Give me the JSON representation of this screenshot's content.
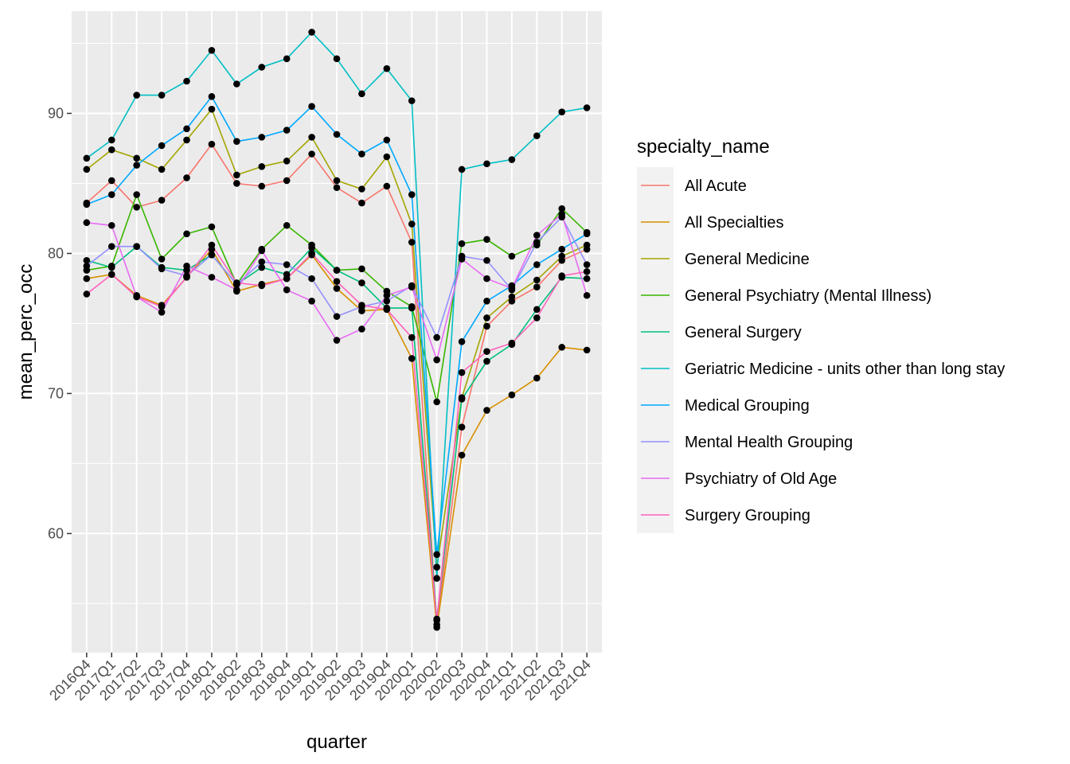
{
  "chart_data": {
    "type": "line",
    "xlabel": "quarter",
    "ylabel": "mean_perc_occ",
    "ylim": [
      51.5,
      97.3
    ],
    "yticks": [
      60,
      70,
      80,
      90
    ],
    "grid": true,
    "legend": {
      "title": "specialty_name",
      "placement": "right"
    },
    "categories": [
      "2016Q4",
      "2017Q1",
      "2017Q2",
      "2017Q3",
      "2017Q4",
      "2018Q1",
      "2018Q2",
      "2018Q3",
      "2018Q4",
      "2019Q1",
      "2019Q2",
      "2019Q3",
      "2019Q4",
      "2020Q1",
      "2020Q2",
      "2020Q3",
      "2020Q4",
      "2021Q1",
      "2021Q2",
      "2021Q3",
      "2021Q4"
    ],
    "series": [
      {
        "name": "All Acute",
        "color": "#F8766D",
        "values": [
          83.6,
          85.2,
          83.3,
          83.8,
          85.4,
          87.8,
          85.0,
          84.8,
          85.2,
          87.1,
          84.7,
          83.6,
          84.8,
          80.8,
          53.5,
          67.6,
          74.8,
          76.6,
          77.6,
          79.5,
          80.3
        ]
      },
      {
        "name": "All Specialties",
        "color": "#D89000",
        "values": [
          78.2,
          78.5,
          77.0,
          76.3,
          78.3,
          80.3,
          77.3,
          77.8,
          78.2,
          79.9,
          77.5,
          75.9,
          76.0,
          72.5,
          53.3,
          65.6,
          68.8,
          69.9,
          71.1,
          73.3,
          73.1
        ]
      },
      {
        "name": "General Medicine",
        "color": "#A3A500",
        "values": [
          86.0,
          87.4,
          86.8,
          86.0,
          88.1,
          90.3,
          85.6,
          86.2,
          86.6,
          88.3,
          85.2,
          84.6,
          86.9,
          82.1,
          57.6,
          69.7,
          75.4,
          76.9,
          78.1,
          79.8,
          80.6
        ]
      },
      {
        "name": "General Psychiatry (Mental Illness)",
        "color": "#39B600",
        "values": [
          78.8,
          79.1,
          84.2,
          79.6,
          81.4,
          81.9,
          77.8,
          80.3,
          82.0,
          80.6,
          78.8,
          78.9,
          77.3,
          76.2,
          69.4,
          80.7,
          81.0,
          79.8,
          80.6,
          83.2,
          81.5
        ]
      },
      {
        "name": "General Surgery",
        "color": "#00BF7D",
        "values": [
          79.5,
          79.0,
          80.5,
          79.0,
          78.8,
          79.9,
          77.8,
          79.0,
          78.5,
          80.4,
          78.8,
          77.9,
          76.1,
          76.1,
          53.9,
          69.6,
          72.3,
          73.5,
          76.0,
          78.3,
          78.2
        ]
      },
      {
        "name": "Geriatric Medicine - units other than long stay",
        "color": "#00BFC4",
        "values": [
          86.8,
          88.1,
          91.3,
          91.3,
          92.3,
          94.5,
          92.1,
          93.3,
          93.9,
          95.8,
          93.9,
          91.4,
          93.2,
          90.9,
          56.8,
          86.0,
          86.4,
          86.7,
          88.4,
          90.1,
          90.4
        ]
      },
      {
        "name": "Medical Grouping",
        "color": "#00A9FF",
        "values": [
          83.5,
          84.2,
          86.3,
          87.7,
          88.9,
          91.2,
          88.0,
          88.3,
          88.8,
          90.5,
          88.5,
          87.1,
          88.1,
          84.2,
          58.5,
          73.7,
          76.6,
          77.7,
          79.2,
          80.3,
          81.4
        ]
      },
      {
        "name": "Mental Health Grouping",
        "color": "#9590FF",
        "values": [
          79.1,
          80.5,
          80.5,
          78.9,
          78.4,
          79.9,
          77.8,
          79.4,
          79.2,
          78.2,
          75.5,
          76.2,
          76.6,
          77.7,
          74.0,
          79.8,
          79.5,
          77.4,
          80.8,
          82.6,
          79.2
        ]
      },
      {
        "name": "Psychiatry of Old Age",
        "color": "#E76BF3",
        "values": [
          82.2,
          82.0,
          76.9,
          75.8,
          79.1,
          78.3,
          77.4,
          80.2,
          77.4,
          76.6,
          73.8,
          74.6,
          77.0,
          77.6,
          72.4,
          79.6,
          78.2,
          77.5,
          81.3,
          82.8,
          77.0
        ]
      },
      {
        "name": "Surgery Grouping",
        "color": "#FF62BC",
        "values": [
          77.1,
          78.5,
          76.9,
          76.2,
          78.3,
          80.6,
          77.9,
          77.7,
          78.2,
          80.0,
          78.0,
          76.3,
          76.0,
          74.0,
          53.8,
          71.5,
          73.0,
          73.6,
          75.4,
          78.4,
          78.7
        ]
      }
    ]
  }
}
